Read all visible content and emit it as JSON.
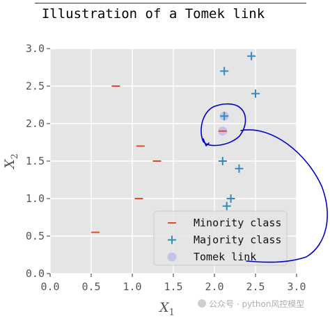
{
  "chart_data": {
    "type": "scatter",
    "title": "Illustration of a Tomek link",
    "xlabel": "X",
    "xlabel_sub": "1",
    "ylabel": "X",
    "ylabel_sub": "2",
    "xlim": [
      0.0,
      3.0
    ],
    "ylim": [
      0.0,
      3.0
    ],
    "xticks": [
      "0.0",
      "0.5",
      "1.0",
      "1.5",
      "2.0",
      "2.5",
      "3.0"
    ],
    "yticks": [
      "0.0",
      "0.5",
      "1.0",
      "1.5",
      "2.0",
      "2.5",
      "3.0"
    ],
    "grid": true,
    "legend_position": "lower-right",
    "series": [
      {
        "name": "Minority class",
        "marker": "hline",
        "color": "#e24a33",
        "points": [
          [
            0.8,
            2.5
          ],
          [
            1.1,
            1.7
          ],
          [
            1.3,
            1.5
          ],
          [
            1.08,
            1.0
          ],
          [
            0.55,
            0.55
          ],
          [
            2.1,
            1.9
          ]
        ]
      },
      {
        "name": "Majority class",
        "marker": "plus",
        "color": "#348abd",
        "points": [
          [
            2.45,
            2.9
          ],
          [
            2.12,
            2.7
          ],
          [
            2.5,
            2.4
          ],
          [
            2.12,
            2.1
          ],
          [
            2.1,
            1.5
          ],
          [
            2.3,
            1.4
          ],
          [
            2.2,
            1.0
          ],
          [
            2.15,
            0.9
          ]
        ]
      },
      {
        "name": "Tomek link",
        "marker": "circle",
        "color": "#9999ee",
        "points": [
          [
            2.12,
            2.1
          ],
          [
            2.1,
            1.9
          ]
        ]
      }
    ],
    "annotation_color": "#0000cc",
    "background_color": "#e5e5e5",
    "grid_color": "#ffffff"
  },
  "watermark": "公众号 · python风控模型"
}
